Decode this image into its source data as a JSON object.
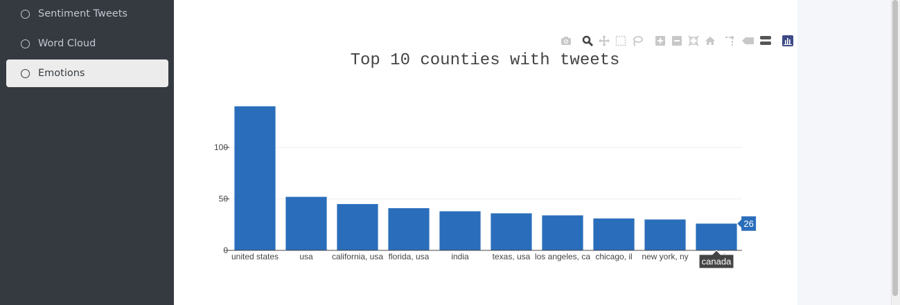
{
  "sidebar": {
    "items": [
      {
        "label": "Sentiment Tweets",
        "active": false
      },
      {
        "label": "Word Cloud",
        "active": false
      },
      {
        "label": "Emotions",
        "active": true
      }
    ]
  },
  "modebar": {
    "icons": [
      "camera-icon",
      "zoom-icon",
      "pan-icon",
      "box-select-icon",
      "lasso-icon",
      "zoom-in-icon",
      "zoom-out-icon",
      "autoscale-icon",
      "reset-axes-icon",
      "spike-lines-icon",
      "hover-closest-icon",
      "hover-compare-icon",
      "plotly-logo-icon"
    ]
  },
  "chart_data": {
    "type": "bar",
    "title": "Top 10 counties with tweets",
    "categories": [
      "united states",
      "usa",
      "california, usa",
      "florida, usa",
      "india",
      "texas, usa",
      "los angeles, ca",
      "chicago, il",
      "new york, ny",
      "canada"
    ],
    "values": [
      140,
      52,
      45,
      41,
      38,
      36,
      34,
      31,
      30,
      26
    ],
    "yticks": [
      0,
      50,
      100
    ],
    "ylim": [
      0,
      147
    ],
    "grid": true,
    "bar_color": "#2a6ebb",
    "hover": {
      "category": "canada",
      "value": "26"
    }
  }
}
